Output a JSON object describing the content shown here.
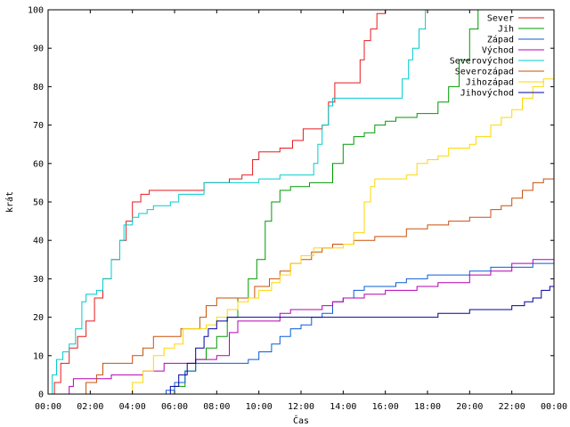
{
  "chart_data": {
    "type": "line",
    "title": "",
    "xlabel": "Čas",
    "ylabel": "krát",
    "xlim": [
      0,
      24
    ],
    "ylim": [
      0,
      100
    ],
    "x_unit": "hours",
    "grid": false,
    "legend_position": "top-right",
    "x_ticks": [
      {
        "x": 0,
        "label": "00:00"
      },
      {
        "x": 2,
        "label": "02:00"
      },
      {
        "x": 4,
        "label": "04:00"
      },
      {
        "x": 6,
        "label": "06:00"
      },
      {
        "x": 8,
        "label": "08:00"
      },
      {
        "x": 10,
        "label": "10:00"
      },
      {
        "x": 12,
        "label": "12:00"
      },
      {
        "x": 14,
        "label": "14:00"
      },
      {
        "x": 16,
        "label": "16:00"
      },
      {
        "x": 18,
        "label": "18:00"
      },
      {
        "x": 20,
        "label": "20:00"
      },
      {
        "x": 22,
        "label": "22:00"
      },
      {
        "x": 24,
        "label": "00:00"
      }
    ],
    "y_ticks": [
      0,
      10,
      20,
      30,
      40,
      50,
      60,
      70,
      80,
      90,
      100
    ],
    "series": [
      {
        "name": "Sever",
        "color": "#e8191d",
        "points": [
          [
            0,
            0
          ],
          [
            0.3,
            3
          ],
          [
            0.6,
            8
          ],
          [
            1.0,
            12
          ],
          [
            1.4,
            15
          ],
          [
            1.8,
            19
          ],
          [
            2.2,
            25
          ],
          [
            2.6,
            30
          ],
          [
            3.0,
            35
          ],
          [
            3.4,
            40
          ],
          [
            3.7,
            45
          ],
          [
            4.0,
            50
          ],
          [
            4.4,
            52
          ],
          [
            4.8,
            53
          ],
          [
            5.6,
            53
          ],
          [
            7.4,
            55
          ],
          [
            8.6,
            56
          ],
          [
            9.2,
            57
          ],
          [
            9.7,
            61
          ],
          [
            10.0,
            63
          ],
          [
            11.0,
            64
          ],
          [
            11.6,
            66
          ],
          [
            12.1,
            69
          ],
          [
            13.0,
            70
          ],
          [
            13.3,
            76
          ],
          [
            13.6,
            81
          ],
          [
            14.6,
            81
          ],
          [
            14.8,
            87
          ],
          [
            15.0,
            92
          ],
          [
            15.3,
            95
          ],
          [
            15.6,
            99
          ],
          [
            16.0,
            100
          ]
        ]
      },
      {
        "name": "Jih",
        "color": "#009a00",
        "points": [
          [
            0,
            0
          ],
          [
            5.8,
            0
          ],
          [
            6.0,
            2
          ],
          [
            6.5,
            6
          ],
          [
            7.0,
            9
          ],
          [
            7.5,
            12
          ],
          [
            8.0,
            15
          ],
          [
            8.5,
            20
          ],
          [
            9.0,
            25
          ],
          [
            9.5,
            30
          ],
          [
            9.9,
            35
          ],
          [
            10.3,
            45
          ],
          [
            10.6,
            50
          ],
          [
            11.0,
            53
          ],
          [
            11.5,
            54
          ],
          [
            12.4,
            55
          ],
          [
            13.0,
            55
          ],
          [
            13.5,
            60
          ],
          [
            14.0,
            65
          ],
          [
            14.5,
            67
          ],
          [
            15.0,
            68
          ],
          [
            15.5,
            70
          ],
          [
            16.0,
            71
          ],
          [
            16.5,
            72
          ],
          [
            17.5,
            73
          ],
          [
            18.5,
            76
          ],
          [
            19.0,
            80
          ],
          [
            19.5,
            87
          ],
          [
            20.0,
            95
          ],
          [
            20.4,
            100
          ]
        ]
      },
      {
        "name": "Západ",
        "color": "#0a5cd5",
        "points": [
          [
            0,
            0
          ],
          [
            5.4,
            0
          ],
          [
            5.6,
            1
          ],
          [
            6.0,
            3
          ],
          [
            6.5,
            6
          ],
          [
            7.0,
            8
          ],
          [
            8.0,
            8
          ],
          [
            8.5,
            8
          ],
          [
            9.5,
            9
          ],
          [
            10.0,
            11
          ],
          [
            10.6,
            13
          ],
          [
            11.0,
            15
          ],
          [
            11.5,
            17
          ],
          [
            12.0,
            18
          ],
          [
            12.5,
            20
          ],
          [
            13.0,
            21
          ],
          [
            13.5,
            24
          ],
          [
            14.0,
            25
          ],
          [
            14.5,
            27
          ],
          [
            15.0,
            28
          ],
          [
            16.5,
            29
          ],
          [
            17.0,
            30
          ],
          [
            18.0,
            31
          ],
          [
            20.0,
            32
          ],
          [
            21.0,
            33
          ],
          [
            22.0,
            33
          ],
          [
            23.0,
            34
          ],
          [
            24.0,
            35
          ]
        ]
      },
      {
        "name": "Východ",
        "color": "#b400b4",
        "points": [
          [
            0,
            0
          ],
          [
            0.8,
            0
          ],
          [
            1.0,
            2
          ],
          [
            1.2,
            4
          ],
          [
            2.5,
            4
          ],
          [
            3.0,
            5
          ],
          [
            4.5,
            6
          ],
          [
            5.5,
            8
          ],
          [
            6.0,
            8
          ],
          [
            7.0,
            9
          ],
          [
            8.0,
            10
          ],
          [
            8.6,
            16
          ],
          [
            9.0,
            19
          ],
          [
            10.5,
            19
          ],
          [
            11.0,
            21
          ],
          [
            11.5,
            22
          ],
          [
            12.5,
            22
          ],
          [
            13.0,
            23
          ],
          [
            13.5,
            24
          ],
          [
            14.0,
            25
          ],
          [
            15.0,
            26
          ],
          [
            16.0,
            27
          ],
          [
            17.5,
            28
          ],
          [
            18.5,
            29
          ],
          [
            20.0,
            31
          ],
          [
            21.0,
            32
          ],
          [
            22.0,
            34
          ],
          [
            23.0,
            35
          ],
          [
            24.0,
            36
          ]
        ]
      },
      {
        "name": "Severovýchod",
        "color": "#00cccc",
        "points": [
          [
            0,
            0
          ],
          [
            0.2,
            5
          ],
          [
            0.4,
            9
          ],
          [
            0.7,
            11
          ],
          [
            1.0,
            13
          ],
          [
            1.3,
            17
          ],
          [
            1.6,
            24
          ],
          [
            1.8,
            26
          ],
          [
            2.3,
            27
          ],
          [
            2.6,
            30
          ],
          [
            3.0,
            35
          ],
          [
            3.4,
            40
          ],
          [
            3.6,
            44
          ],
          [
            4.0,
            46
          ],
          [
            4.3,
            47
          ],
          [
            4.7,
            48
          ],
          [
            5.0,
            49
          ],
          [
            5.8,
            50
          ],
          [
            6.2,
            52
          ],
          [
            7.4,
            55
          ],
          [
            8.5,
            55
          ],
          [
            9.0,
            55
          ],
          [
            10.0,
            56
          ],
          [
            11.0,
            57
          ],
          [
            12.4,
            57
          ],
          [
            12.6,
            60
          ],
          [
            12.8,
            65
          ],
          [
            13.0,
            70
          ],
          [
            13.3,
            75
          ],
          [
            13.5,
            77
          ],
          [
            16.5,
            77
          ],
          [
            16.8,
            82
          ],
          [
            17.1,
            87
          ],
          [
            17.3,
            90
          ],
          [
            17.6,
            95
          ],
          [
            17.9,
            100
          ]
        ]
      },
      {
        "name": "Severozápad",
        "color": "#c8500a",
        "points": [
          [
            0,
            0
          ],
          [
            1.7,
            0
          ],
          [
            1.8,
            3
          ],
          [
            2.3,
            5
          ],
          [
            2.6,
            8
          ],
          [
            3.0,
            8
          ],
          [
            4.0,
            10
          ],
          [
            4.5,
            12
          ],
          [
            5.0,
            15
          ],
          [
            6.0,
            15
          ],
          [
            6.3,
            17
          ],
          [
            7.2,
            20
          ],
          [
            7.5,
            23
          ],
          [
            8.0,
            25
          ],
          [
            9.0,
            25
          ],
          [
            9.8,
            28
          ],
          [
            10.5,
            30
          ],
          [
            11.0,
            32
          ],
          [
            11.5,
            34
          ],
          [
            12.0,
            35
          ],
          [
            12.5,
            37
          ],
          [
            13.0,
            38
          ],
          [
            13.5,
            39
          ],
          [
            14.5,
            40
          ],
          [
            15.5,
            41
          ],
          [
            17.0,
            43
          ],
          [
            18.0,
            44
          ],
          [
            19.0,
            45
          ],
          [
            20.0,
            46
          ],
          [
            21.0,
            48
          ],
          [
            21.5,
            49
          ],
          [
            22.0,
            51
          ],
          [
            22.5,
            53
          ],
          [
            23.0,
            55
          ],
          [
            23.5,
            56
          ],
          [
            24.0,
            56
          ]
        ]
      },
      {
        "name": "Jihozápad",
        "color": "#ffd700",
        "points": [
          [
            0,
            0
          ],
          [
            3.7,
            0
          ],
          [
            4.0,
            3
          ],
          [
            4.5,
            6
          ],
          [
            5.0,
            10
          ],
          [
            5.5,
            12
          ],
          [
            6.0,
            13
          ],
          [
            6.4,
            17
          ],
          [
            7.0,
            17
          ],
          [
            7.5,
            18
          ],
          [
            8.0,
            20
          ],
          [
            8.5,
            22
          ],
          [
            9.0,
            24
          ],
          [
            9.5,
            25
          ],
          [
            10.0,
            27
          ],
          [
            10.6,
            29
          ],
          [
            11.0,
            31
          ],
          [
            11.5,
            34
          ],
          [
            12.0,
            36
          ],
          [
            12.6,
            38
          ],
          [
            13.5,
            38
          ],
          [
            14.0,
            39
          ],
          [
            14.5,
            42
          ],
          [
            15.0,
            50
          ],
          [
            15.3,
            54
          ],
          [
            15.5,
            56
          ],
          [
            16.5,
            56
          ],
          [
            17.0,
            57
          ],
          [
            17.5,
            60
          ],
          [
            18.0,
            61
          ],
          [
            18.5,
            62
          ],
          [
            19.0,
            64
          ],
          [
            20.0,
            65
          ],
          [
            20.3,
            67
          ],
          [
            21.0,
            70
          ],
          [
            21.5,
            72
          ],
          [
            22.0,
            74
          ],
          [
            22.5,
            77
          ],
          [
            23.0,
            80
          ],
          [
            23.5,
            82
          ],
          [
            24.0,
            84
          ]
        ]
      },
      {
        "name": "Jihovýchod",
        "color": "#0000a0",
        "points": [
          [
            0,
            0
          ],
          [
            5.6,
            0
          ],
          [
            5.8,
            2
          ],
          [
            6.2,
            5
          ],
          [
            6.6,
            8
          ],
          [
            7.0,
            12
          ],
          [
            7.4,
            15
          ],
          [
            7.6,
            17
          ],
          [
            8.0,
            19
          ],
          [
            8.5,
            20
          ],
          [
            9.0,
            20
          ],
          [
            12.0,
            20
          ],
          [
            13.0,
            20
          ],
          [
            14.5,
            20
          ],
          [
            16.0,
            20
          ],
          [
            18.5,
            21
          ],
          [
            20.0,
            22
          ],
          [
            21.5,
            22
          ],
          [
            22.0,
            23
          ],
          [
            22.6,
            24
          ],
          [
            23.0,
            25
          ],
          [
            23.4,
            27
          ],
          [
            23.8,
            28
          ],
          [
            24.0,
            28
          ]
        ]
      }
    ]
  }
}
